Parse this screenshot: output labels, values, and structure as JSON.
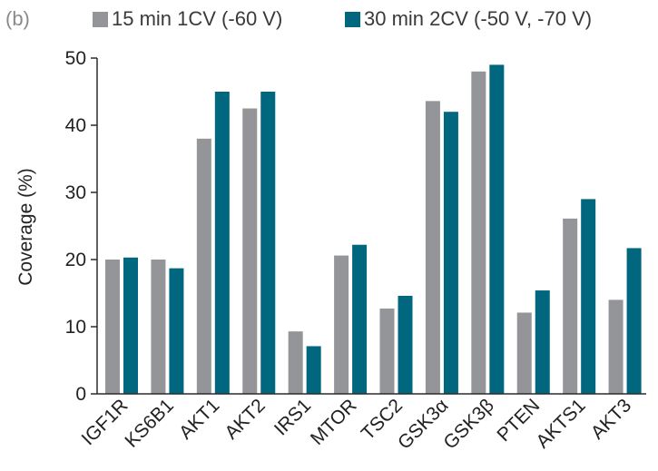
{
  "panel_label": "(b)",
  "chart_data": {
    "type": "bar",
    "title": "",
    "xlabel": "",
    "ylabel": "Coverage (%)",
    "ylim": [
      0,
      50
    ],
    "yticks": [
      0,
      10,
      20,
      30,
      40,
      50
    ],
    "grid": false,
    "legend_position": "top",
    "categories": [
      "IGF1R",
      "KS6B1",
      "AKT1",
      "AKT2",
      "IRS1",
      "MTOR",
      "TSC2",
      "GSK3α",
      "GSK3β",
      "PTEN",
      "AKTS1",
      "AKT3"
    ],
    "series": [
      {
        "name": "15 min 1CV (-60 V)",
        "color": "#939598",
        "values": [
          20.0,
          20.0,
          38.0,
          42.5,
          9.3,
          20.6,
          12.7,
          43.6,
          48.0,
          12.1,
          26.1,
          14.0
        ]
      },
      {
        "name": "30 min 2CV (-50 V, -70 V)",
        "color": "#00677f",
        "values": [
          20.3,
          18.7,
          45.0,
          45.0,
          7.1,
          22.2,
          14.6,
          42.0,
          49.0,
          15.4,
          29.0,
          21.7
        ]
      }
    ]
  }
}
